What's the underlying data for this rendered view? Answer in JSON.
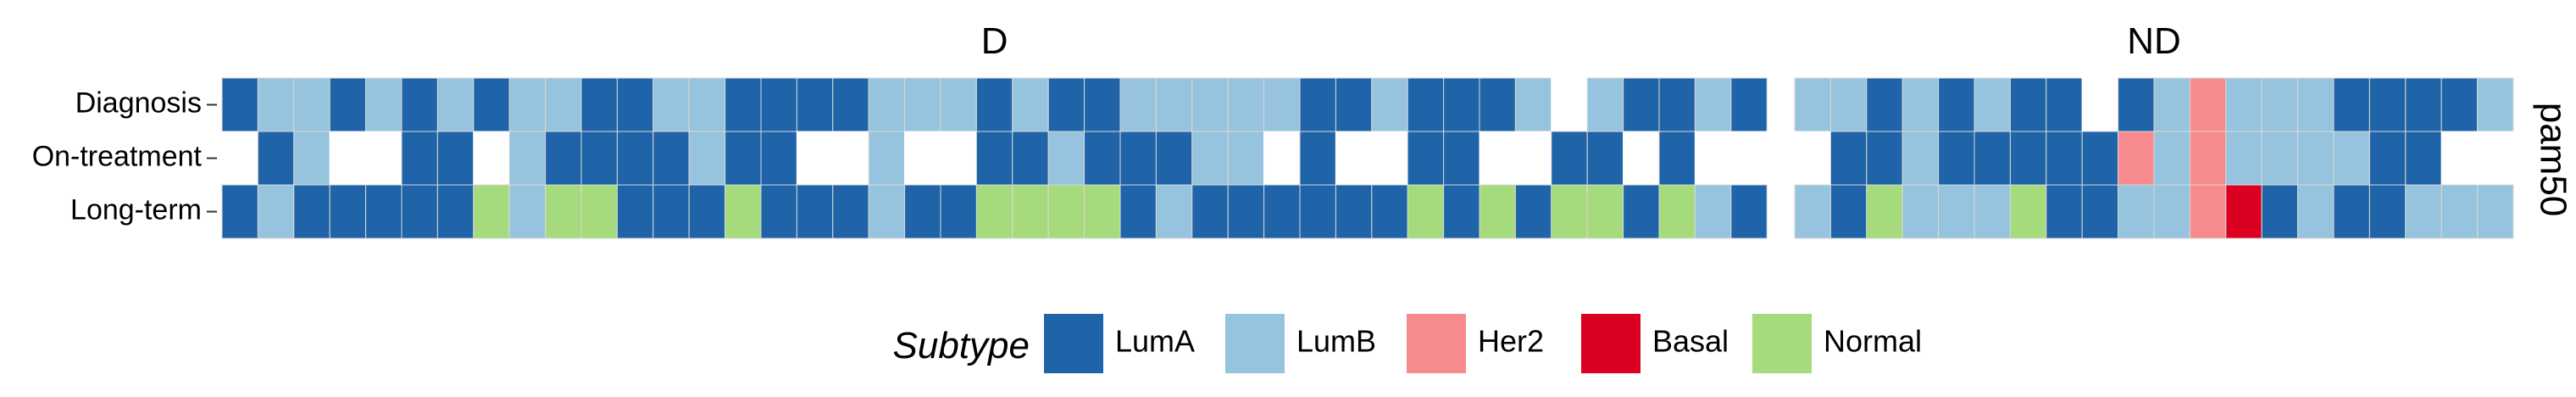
{
  "chart_data": {
    "type": "heatmap",
    "strip_label": "pam50",
    "rows": [
      "Diagnosis",
      "On-treatment",
      "Long-term"
    ],
    "colors": {
      "LumA": "#1f63a8",
      "LumB": "#96c3dd",
      "Her2": "#f78a8c",
      "Basal": "#db0021",
      "Normal": "#a6db7d",
      "none": "#ffffff"
    },
    "legend": {
      "title": "Subtype",
      "items": [
        "LumA",
        "LumB",
        "Her2",
        "Basal",
        "Normal"
      ]
    },
    "panels": [
      {
        "title": "D",
        "values": {
          "Diagnosis": [
            "LumA",
            "LumB",
            "LumB",
            "LumA",
            "LumB",
            "LumA",
            "LumB",
            "LumA",
            "LumB",
            "LumB",
            "LumA",
            "LumA",
            "LumB",
            "LumB",
            "LumA",
            "LumA",
            "LumA",
            "LumA",
            "LumB",
            "LumB",
            "LumB",
            "LumA",
            "LumB",
            "LumA",
            "LumA",
            "LumB",
            "LumB",
            "LumB",
            "LumB",
            "LumB",
            "LumA",
            "LumA",
            "LumB",
            "LumA",
            "LumA",
            "LumA",
            "LumB",
            null,
            "LumB",
            "LumA",
            "LumA",
            "LumB",
            "LumA"
          ],
          "On-treatment": [
            null,
            "LumA",
            "LumB",
            null,
            null,
            "LumA",
            "LumA",
            null,
            "LumB",
            "LumA",
            "LumA",
            "LumA",
            "LumA",
            "LumB",
            "LumA",
            "LumA",
            null,
            null,
            "LumB",
            null,
            null,
            "LumA",
            "LumA",
            "LumB",
            "LumA",
            "LumA",
            "LumA",
            "LumB",
            "LumB",
            null,
            "LumA",
            null,
            null,
            "LumA",
            "LumA",
            null,
            null,
            "LumA",
            "LumA",
            null,
            "LumA",
            null,
            null
          ],
          "Long-term": [
            "LumA",
            "LumB",
            "LumA",
            "LumA",
            "LumA",
            "LumA",
            "LumA",
            "Normal",
            "LumB",
            "Normal",
            "Normal",
            "LumA",
            "LumA",
            "LumA",
            "Normal",
            "LumA",
            "LumA",
            "LumA",
            "LumB",
            "LumA",
            "LumA",
            "Normal",
            "Normal",
            "Normal",
            "Normal",
            "LumA",
            "LumB",
            "LumA",
            "LumA",
            "LumA",
            "LumA",
            "LumA",
            "LumA",
            "Normal",
            "LumA",
            "Normal",
            "LumA",
            "Normal",
            "Normal",
            "LumA",
            "Normal",
            "LumB",
            "LumA"
          ]
        }
      },
      {
        "title": "ND",
        "values": {
          "Diagnosis": [
            "LumB",
            "LumB",
            "LumA",
            "LumB",
            "LumA",
            "LumB",
            "LumA",
            "LumA",
            null,
            "LumA",
            "LumB",
            "Her2",
            "LumB",
            "LumB",
            "LumB",
            "LumA",
            "LumA",
            "LumA",
            "LumA",
            "LumB"
          ],
          "On-treatment": [
            null,
            "LumA",
            "LumA",
            "LumB",
            "LumA",
            "LumA",
            "LumA",
            "LumA",
            "LumA",
            "Her2",
            "LumB",
            "Her2",
            "LumB",
            "LumB",
            "LumB",
            "LumB",
            "LumA",
            "LumA",
            null,
            null
          ],
          "Long-term": [
            "LumB",
            "LumA",
            "Normal",
            "LumB",
            "LumB",
            "LumB",
            "Normal",
            "LumA",
            "LumA",
            "LumB",
            "LumB",
            "Her2",
            "Basal",
            "LumA",
            "LumB",
            "LumA",
            "LumA",
            "LumB",
            "LumB",
            "LumB"
          ]
        }
      }
    ]
  }
}
